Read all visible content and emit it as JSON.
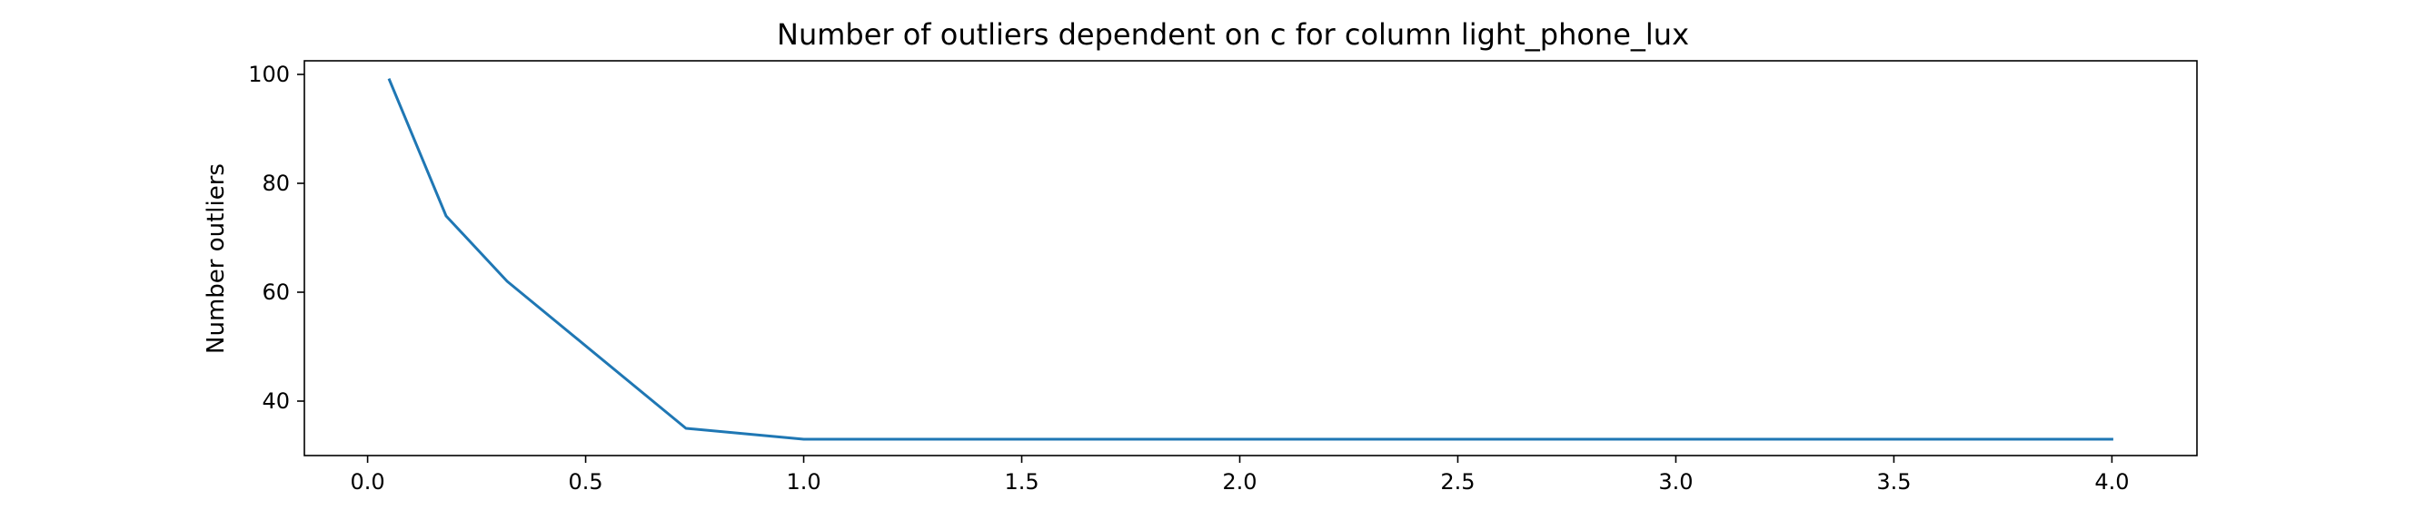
{
  "chart_data": {
    "type": "line",
    "title": "Number of outliers dependent on c for column light_phone_lux",
    "xlabel": "",
    "ylabel": "Number outliers",
    "xlim": [
      -0.145,
      4.195
    ],
    "ylim": [
      30.0,
      102.5
    ],
    "xticks": [
      "0.0",
      "0.5",
      "1.0",
      "1.5",
      "2.0",
      "2.5",
      "3.0",
      "3.5",
      "4.0"
    ],
    "xtick_values": [
      0.0,
      0.5,
      1.0,
      1.5,
      2.0,
      2.5,
      3.0,
      3.5,
      4.0
    ],
    "yticks": [
      "40",
      "60",
      "80",
      "100"
    ],
    "ytick_values": [
      40,
      60,
      80,
      100
    ],
    "grid": false,
    "series": [
      {
        "color": "#1f77b4",
        "x": [
          0.05,
          0.18,
          0.32,
          0.73,
          1.0,
          1.5,
          2.0,
          2.5,
          3.0,
          3.5,
          4.0
        ],
        "y": [
          99,
          74,
          62,
          35,
          33,
          33,
          33,
          33,
          33,
          33,
          33
        ]
      }
    ]
  }
}
